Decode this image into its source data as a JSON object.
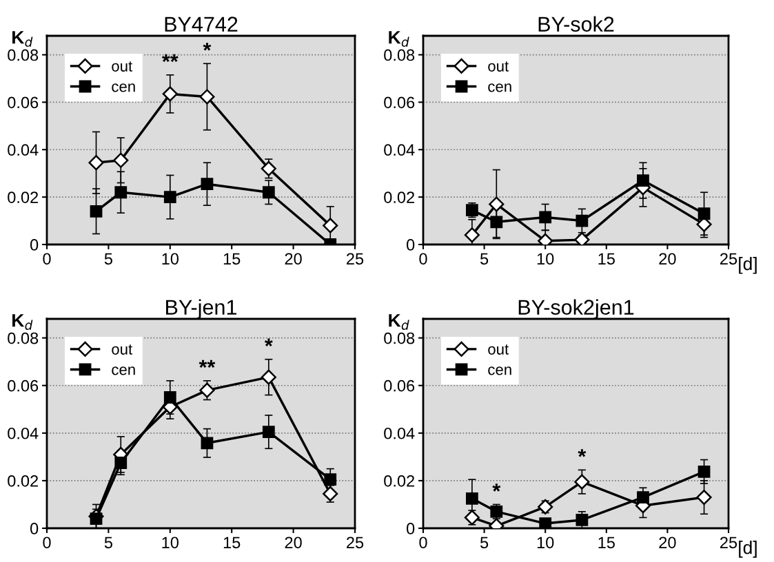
{
  "chart_data": [
    {
      "type": "line",
      "title": "BY4742",
      "ylabel": "K$_{d}$",
      "x": [
        4,
        6,
        10,
        13,
        18,
        23
      ],
      "xlim": [
        0,
        25
      ],
      "xticks": [
        0,
        5,
        10,
        15,
        20,
        25
      ],
      "ylim": [
        0,
        0.088
      ],
      "yticks": [
        0,
        0.02,
        0.04,
        0.06,
        0.08
      ],
      "grid": "y",
      "legend": "top left",
      "line_style": "solid",
      "series": [
        {
          "name": "out",
          "color": "#000000",
          "marker": "diamond",
          "values": [
            0.0345,
            0.0355,
            0.0635,
            0.0623,
            0.032,
            0.008
          ],
          "errors": [
            0.013,
            0.0095,
            0.008,
            0.014,
            0.004,
            0.008
          ]
        },
        {
          "name": "cen",
          "color": "#000000",
          "marker": "square",
          "values": [
            0.014,
            0.022,
            0.02,
            0.0255,
            0.022,
            0.0
          ],
          "errors": [
            0.0095,
            0.0087,
            0.0092,
            0.009,
            0.005,
            null
          ]
        }
      ],
      "annotations": [
        {
          "text": "**",
          "x": 10,
          "y": 0.0635
        },
        {
          "text": "*",
          "x": 13,
          "y": 0.0623
        }
      ]
    },
    {
      "type": "line",
      "title": "BY-sok2",
      "ylabel": "K$_{d}$",
      "xlabel": "[d]",
      "x": [
        4,
        6,
        10,
        13,
        18,
        23
      ],
      "xlim": [
        0,
        25
      ],
      "xticks": [
        0,
        5,
        10,
        15,
        20,
        25
      ],
      "ylim": [
        0,
        0.088
      ],
      "yticks": [
        0,
        0.02,
        0.04,
        0.06,
        0.08
      ],
      "grid": "y",
      "legend": "top left",
      "line_style": "solid",
      "series": [
        {
          "name": "out",
          "color": "#000000",
          "marker": "diamond",
          "values": [
            0.004,
            0.017,
            0.0015,
            0.002,
            0.024,
            0.0085
          ],
          "errors": [
            0.0065,
            0.0145,
            0.0045,
            0.002,
            0.008,
            0.0055
          ]
        },
        {
          "name": "cen",
          "color": "#000000",
          "marker": "square",
          "values": [
            0.0145,
            0.0095,
            0.0115,
            0.01,
            0.027,
            0.013
          ],
          "errors": [
            0.003,
            0.0065,
            0.0055,
            0.005,
            0.0075,
            0.009
          ]
        }
      ]
    },
    {
      "type": "line",
      "title": "BY-jen1",
      "ylabel": "K$_{d}$",
      "x": [
        4,
        6,
        10,
        13,
        18,
        23
      ],
      "xlim": [
        0,
        25
      ],
      "xticks": [
        0,
        5,
        10,
        15,
        20,
        25
      ],
      "ylim": [
        0,
        0.088
      ],
      "yticks": [
        0,
        0.02,
        0.04,
        0.06,
        0.08
      ],
      "grid": "y",
      "legend": "top left",
      "line_style": "solid",
      "series": [
        {
          "name": "out",
          "color": "#000000",
          "marker": "diamond",
          "values": [
            0.005,
            0.031,
            0.051,
            0.058,
            0.0635,
            0.0145
          ],
          "errors": [
            0.005,
            0.0075,
            0.005,
            0.004,
            0.0075,
            0.0035
          ]
        },
        {
          "name": "cen",
          "color": "#000000",
          "marker": "square",
          "values": [
            0.004,
            0.0275,
            0.055,
            0.0358,
            0.0405,
            0.0205
          ],
          "errors": [
            0.004,
            0.005,
            0.007,
            0.006,
            0.007,
            0.0045
          ]
        }
      ],
      "annotations": [
        {
          "text": "**",
          "x": 13,
          "y": 0.058
        },
        {
          "text": "*",
          "x": 18,
          "y": 0.0635
        }
      ]
    },
    {
      "type": "line",
      "title": "BY-sok2jen1",
      "ylabel": "K$_{d}$",
      "xlabel": "[d]",
      "x": [
        4,
        6,
        10,
        13,
        18,
        23
      ],
      "xlim": [
        0,
        25
      ],
      "xticks": [
        0,
        5,
        10,
        15,
        20,
        25
      ],
      "ylim": [
        0,
        0.088
      ],
      "yticks": [
        0,
        0.02,
        0.04,
        0.06,
        0.08
      ],
      "grid": "y",
      "legend": "top left",
      "line_style": "solid",
      "series": [
        {
          "name": "out",
          "color": "#000000",
          "marker": "diamond",
          "values": [
            0.0045,
            0.001,
            0.009,
            0.0195,
            0.0095,
            0.013
          ],
          "errors": [
            0.003,
            0.001,
            0.0025,
            0.005,
            0.005,
            0.007
          ]
        },
        {
          "name": "cen",
          "color": "#000000",
          "marker": "square",
          "values": [
            0.0125,
            0.007,
            0.002,
            0.0035,
            0.013,
            0.0238
          ],
          "errors": [
            0.008,
            0.003,
            0.002,
            0.0035,
            0.004,
            0.005
          ]
        }
      ],
      "annotations": [
        {
          "text": "*",
          "x": 6,
          "y": 0.007
        },
        {
          "text": "*",
          "x": 13,
          "y": 0.0195
        }
      ]
    }
  ]
}
